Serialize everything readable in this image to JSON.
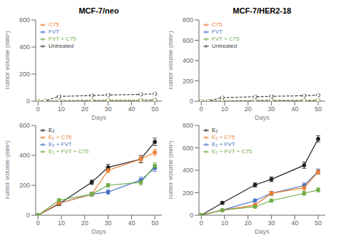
{
  "chart_data": [
    {
      "type": "line",
      "title": "MCF-7/neo",
      "xlabel": "Days",
      "ylabel": "Tumor volume (mm³)",
      "x": [
        0,
        3,
        9,
        23,
        30,
        44,
        50
      ],
      "xlim": [
        -1,
        53
      ],
      "xticks": [
        0,
        10,
        20,
        30,
        40,
        50
      ],
      "ylim": [
        0,
        600
      ],
      "yticks": [
        0,
        200,
        400,
        600
      ],
      "legend": "upper left",
      "series": [
        {
          "name": "Untreated",
          "color": "#444444",
          "line_style": "dashed",
          "marker": "open_circle",
          "values": [
            0,
            3,
            35,
            42,
            46,
            50,
            55
          ],
          "errors": [
            0,
            1,
            4,
            5,
            5,
            5,
            6
          ]
        },
        {
          "name": "FVT",
          "color": "#4472C4",
          "line_style": "dashed",
          "marker": "open_circle",
          "values": [
            0,
            1,
            3,
            5,
            7,
            8,
            10
          ],
          "errors": [
            0,
            0,
            1,
            1,
            1,
            1,
            2
          ]
        },
        {
          "name": "C75",
          "color": "#ED7D31",
          "line_style": "dashed",
          "marker": "open_circle",
          "values": [
            0,
            1,
            3,
            5,
            7,
            8,
            10
          ],
          "errors": [
            0,
            0,
            1,
            1,
            1,
            1,
            2
          ]
        },
        {
          "name": "FVT + C75",
          "color": "#70AD47",
          "line_style": "dashed",
          "marker": "open_circle",
          "values": [
            0,
            1,
            2,
            4,
            5,
            5,
            7
          ],
          "errors": [
            0,
            0,
            1,
            1,
            1,
            1,
            1
          ]
        }
      ]
    },
    {
      "type": "line",
      "title": "MCF-7/HER2-18",
      "xlabel": "Days",
      "ylabel": "Tumor volume (mm³)",
      "x": [
        0,
        3,
        9,
        23,
        30,
        44,
        50
      ],
      "xlim": [
        -1,
        53
      ],
      "xticks": [
        0,
        10,
        20,
        30,
        40,
        50
      ],
      "ylim": [
        0,
        800
      ],
      "yticks": [
        0,
        200,
        400,
        600,
        800
      ],
      "legend": "upper left",
      "series": [
        {
          "name": "Untreated",
          "color": "#444444",
          "line_style": "dashed",
          "marker": "open_circle",
          "values": [
            0,
            3,
            35,
            44,
            48,
            54,
            60
          ],
          "errors": [
            0,
            1,
            4,
            5,
            5,
            5,
            6
          ]
        },
        {
          "name": "FVT",
          "color": "#4472C4",
          "line_style": "dashed",
          "marker": "open_circle",
          "values": [
            0,
            1,
            3,
            5,
            7,
            8,
            10
          ],
          "errors": [
            0,
            0,
            1,
            1,
            1,
            1,
            2
          ]
        },
        {
          "name": "C75",
          "color": "#ED7D31",
          "line_style": "dashed",
          "marker": "open_circle",
          "values": [
            0,
            1,
            3,
            5,
            7,
            8,
            10
          ],
          "errors": [
            0,
            0,
            1,
            1,
            1,
            1,
            2
          ]
        },
        {
          "name": "FVT + C75",
          "color": "#70AD47",
          "line_style": "dashed",
          "marker": "open_circle",
          "values": [
            0,
            1,
            2,
            4,
            5,
            5,
            8
          ],
          "errors": [
            0,
            0,
            1,
            1,
            1,
            1,
            1
          ]
        }
      ]
    },
    {
      "type": "line",
      "xlabel": "Days",
      "ylabel": "Tumor volume (mm³)",
      "x": [
        0,
        9,
        23,
        30,
        44,
        50
      ],
      "xlim": [
        -1,
        53
      ],
      "xticks": [
        0,
        10,
        20,
        30,
        40,
        50
      ],
      "ylim": [
        0,
        600
      ],
      "yticks": [
        0,
        200,
        400,
        600
      ],
      "legend": "upper left",
      "series": [
        {
          "name": "E₂",
          "color": "#222222",
          "line_style": "solid",
          "marker": "circle",
          "values": [
            0,
            75,
            220,
            320,
            375,
            490
          ],
          "errors": [
            0,
            10,
            15,
            20,
            25,
            25
          ]
        },
        {
          "name": "E₂ + FVT",
          "color": "#4472C4",
          "line_style": "solid",
          "marker": "circle",
          "values": [
            0,
            80,
            140,
            155,
            235,
            315
          ],
          "errors": [
            0,
            10,
            12,
            15,
            20,
            22
          ]
        },
        {
          "name": "E₂ + C75",
          "color": "#ED7D31",
          "line_style": "solid",
          "marker": "circle",
          "values": [
            0,
            80,
            140,
            300,
            375,
            420
          ],
          "errors": [
            0,
            10,
            12,
            15,
            20,
            20
          ]
        },
        {
          "name": "E₂ + FVT + C75",
          "color": "#70AD47",
          "line_style": "solid",
          "marker": "circle",
          "values": [
            0,
            100,
            140,
            200,
            220,
            330
          ],
          "errors": [
            0,
            10,
            12,
            12,
            18,
            20
          ]
        }
      ]
    },
    {
      "type": "line",
      "xlabel": "Days",
      "ylabel": "Tumor volume (mm³)",
      "x": [
        0,
        9,
        23,
        30,
        44,
        50
      ],
      "xlim": [
        -1,
        53
      ],
      "xticks": [
        0,
        10,
        20,
        30,
        40,
        50
      ],
      "ylim": [
        0,
        800
      ],
      "yticks": [
        0,
        200,
        400,
        600,
        800
      ],
      "legend": "upper left",
      "series": [
        {
          "name": "E₂",
          "color": "#222222",
          "line_style": "solid",
          "marker": "circle",
          "values": [
            0,
            110,
            270,
            320,
            445,
            680
          ],
          "errors": [
            0,
            10,
            18,
            22,
            28,
            28
          ]
        },
        {
          "name": "E₂ + FVT",
          "color": "#4472C4",
          "line_style": "solid",
          "marker": "circle",
          "values": [
            0,
            45,
            130,
            195,
            265,
            390
          ],
          "errors": [
            0,
            8,
            14,
            18,
            22,
            22
          ]
        },
        {
          "name": "E₂ + C75",
          "color": "#ED7D31",
          "line_style": "solid",
          "marker": "circle",
          "values": [
            0,
            45,
            90,
            195,
            245,
            385
          ],
          "errors": [
            0,
            8,
            14,
            18,
            22,
            22
          ]
        },
        {
          "name": "E₂ + FVT + C75",
          "color": "#70AD47",
          "line_style": "solid",
          "marker": "circle",
          "values": [
            0,
            45,
            75,
            130,
            195,
            225
          ],
          "errors": [
            0,
            8,
            10,
            13,
            18,
            18
          ]
        }
      ]
    }
  ]
}
